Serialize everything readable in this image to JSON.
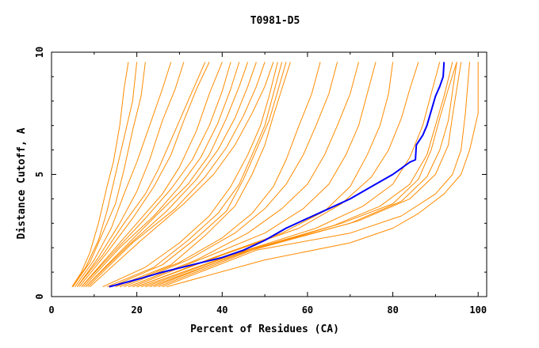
{
  "chart_data": {
    "type": "line",
    "title": "T0981-D5",
    "xlabel": "Percent of Residues (CA)",
    "ylabel": "Distance Cutoff, A",
    "xlim": [
      0,
      102
    ],
    "ylim": [
      0,
      10
    ],
    "xticks": [
      0,
      20,
      40,
      60,
      80,
      100
    ],
    "yticks": [
      0,
      5,
      10
    ],
    "grid": false,
    "colors": {
      "background_curves": "#ff8c00",
      "highlight_curve": "#0000ff",
      "axes": "#000000"
    },
    "series_style": "background curves are orange thin lines, one highlighted model in blue",
    "series": [
      {
        "points": [
          [
            4.8,
            0.4
          ],
          [
            7,
            1.0
          ],
          [
            9,
            1.8
          ],
          [
            11,
            3.0
          ],
          [
            13,
            4.5
          ],
          [
            14.5,
            5.5
          ],
          [
            16,
            7.0
          ],
          [
            17,
            8.5
          ],
          [
            18,
            9.6
          ]
        ]
      },
      {
        "points": [
          [
            5,
            0.4
          ],
          [
            8,
            1.2
          ],
          [
            11,
            2.3
          ],
          [
            13,
            3.5
          ],
          [
            15,
            5.0
          ],
          [
            17,
            6.5
          ],
          [
            19,
            8.0
          ],
          [
            20,
            9.6
          ]
        ]
      },
      {
        "points": [
          [
            5,
            0.4
          ],
          [
            9,
            1.4
          ],
          [
            12,
            2.6
          ],
          [
            15,
            3.8
          ],
          [
            17,
            5.2
          ],
          [
            19,
            6.8
          ],
          [
            21,
            8.2
          ],
          [
            22,
            9.6
          ]
        ]
      },
      {
        "points": [
          [
            5.5,
            0.4
          ],
          [
            10,
            1.5
          ],
          [
            14,
            2.8
          ],
          [
            17,
            4.2
          ],
          [
            20,
            5.5
          ],
          [
            23,
            7.0
          ],
          [
            26,
            8.5
          ],
          [
            28,
            9.6
          ]
        ]
      },
      {
        "points": [
          [
            6,
            0.4
          ],
          [
            11,
            1.6
          ],
          [
            16,
            3.0
          ],
          [
            20,
            4.3
          ],
          [
            23,
            5.6
          ],
          [
            26,
            7.2
          ],
          [
            29,
            8.5
          ],
          [
            31,
            9.6
          ]
        ]
      },
      {
        "points": [
          [
            6,
            0.4
          ],
          [
            12,
            1.7
          ],
          [
            17,
            3.0
          ],
          [
            22,
            4.2
          ],
          [
            25,
            5.2
          ],
          [
            29,
            6.8
          ],
          [
            33,
            8.4
          ],
          [
            36,
            9.6
          ]
        ]
      },
      {
        "points": [
          [
            6.5,
            0.4
          ],
          [
            13,
            1.8
          ],
          [
            19,
            3.2
          ],
          [
            24,
            4.5
          ],
          [
            28,
            5.8
          ],
          [
            31,
            7.2
          ],
          [
            34,
            8.5
          ],
          [
            37,
            9.6
          ]
        ]
      },
      {
        "points": [
          [
            7,
            0.4
          ],
          [
            14,
            1.8
          ],
          [
            20,
            3.0
          ],
          [
            26,
            4.2
          ],
          [
            30,
            5.3
          ],
          [
            34,
            6.8
          ],
          [
            37,
            8.3
          ],
          [
            40,
            9.6
          ]
        ]
      },
      {
        "points": [
          [
            7,
            0.4
          ],
          [
            15,
            1.9
          ],
          [
            22,
            3.2
          ],
          [
            28,
            4.4
          ],
          [
            33,
            5.6
          ],
          [
            37,
            7.0
          ],
          [
            40,
            8.4
          ],
          [
            42,
            9.6
          ]
        ]
      },
      {
        "points": [
          [
            7.5,
            0.4
          ],
          [
            16,
            2.0
          ],
          [
            24,
            3.3
          ],
          [
            30,
            4.5
          ],
          [
            35,
            5.7
          ],
          [
            39,
            7.1
          ],
          [
            42,
            8.5
          ],
          [
            44,
            9.6
          ]
        ]
      },
      {
        "points": [
          [
            8,
            0.4
          ],
          [
            17,
            2.0
          ],
          [
            25,
            3.4
          ],
          [
            32,
            4.6
          ],
          [
            37,
            5.8
          ],
          [
            41,
            7.3
          ],
          [
            44,
            8.6
          ],
          [
            46,
            9.6
          ]
        ]
      },
      {
        "points": [
          [
            8,
            0.4
          ],
          [
            18,
            2.1
          ],
          [
            27,
            3.5
          ],
          [
            34,
            4.8
          ],
          [
            39,
            6.0
          ],
          [
            43,
            7.3
          ],
          [
            46,
            8.6
          ],
          [
            48,
            9.6
          ]
        ]
      },
      {
        "points": [
          [
            8.5,
            0.4
          ],
          [
            19,
            2.2
          ],
          [
            29,
            3.6
          ],
          [
            36,
            4.9
          ],
          [
            41,
            6.1
          ],
          [
            45,
            7.4
          ],
          [
            48,
            8.6
          ],
          [
            50,
            9.6
          ]
        ]
      },
      {
        "points": [
          [
            9,
            0.4
          ],
          [
            21,
            2.3
          ],
          [
            31,
            3.8
          ],
          [
            38,
            5.0
          ],
          [
            43,
            6.2
          ],
          [
            47,
            7.5
          ],
          [
            50,
            8.6
          ],
          [
            52,
            9.6
          ]
        ]
      },
      {
        "points": [
          [
            12,
            0.4
          ],
          [
            22,
            1.2
          ],
          [
            30,
            2.2
          ],
          [
            37,
            3.3
          ],
          [
            42,
            4.5
          ],
          [
            46,
            5.8
          ],
          [
            49,
            7.0
          ],
          [
            51,
            8.2
          ],
          [
            53,
            9.6
          ]
        ]
      },
      {
        "points": [
          [
            13,
            0.4
          ],
          [
            24,
            1.2
          ],
          [
            32,
            2.3
          ],
          [
            39,
            3.4
          ],
          [
            44,
            4.6
          ],
          [
            47,
            5.8
          ],
          [
            50,
            7.0
          ],
          [
            52,
            8.3
          ],
          [
            54,
            9.6
          ]
        ]
      },
      {
        "points": [
          [
            14,
            0.4
          ],
          [
            26,
            1.3
          ],
          [
            34,
            2.4
          ],
          [
            41,
            3.5
          ],
          [
            45,
            4.8
          ],
          [
            48,
            6.0
          ],
          [
            51,
            7.2
          ],
          [
            53,
            8.4
          ],
          [
            55,
            9.6
          ]
        ]
      },
      {
        "points": [
          [
            15,
            0.4
          ],
          [
            28,
            1.3
          ],
          [
            36,
            2.5
          ],
          [
            43,
            3.7
          ],
          [
            47,
            5.0
          ],
          [
            50,
            6.2
          ],
          [
            52,
            7.4
          ],
          [
            54,
            8.5
          ],
          [
            56,
            9.6
          ]
        ]
      },
      {
        "points": [
          [
            16,
            0.4
          ],
          [
            30,
            1.4
          ],
          [
            40,
            2.4
          ],
          [
            47,
            3.4
          ],
          [
            52,
            4.5
          ],
          [
            55,
            5.6
          ],
          [
            58,
            7.0
          ],
          [
            61,
            8.3
          ],
          [
            63,
            9.6
          ]
        ]
      },
      {
        "points": [
          [
            17,
            0.4
          ],
          [
            32,
            1.5
          ],
          [
            43,
            2.6
          ],
          [
            50,
            3.6
          ],
          [
            55,
            4.6
          ],
          [
            59,
            5.8
          ],
          [
            62,
            7.0
          ],
          [
            65,
            8.3
          ],
          [
            67,
            9.6
          ]
        ]
      },
      {
        "points": [
          [
            18,
            0.4
          ],
          [
            34,
            1.5
          ],
          [
            46,
            2.6
          ],
          [
            54,
            3.6
          ],
          [
            60,
            4.6
          ],
          [
            64,
            5.8
          ],
          [
            67,
            7.0
          ],
          [
            70,
            8.3
          ],
          [
            72,
            9.6
          ]
        ]
      },
      {
        "points": [
          [
            19,
            0.4
          ],
          [
            36,
            1.6
          ],
          [
            50,
            2.6
          ],
          [
            59,
            3.6
          ],
          [
            65,
            4.6
          ],
          [
            69,
            5.8
          ],
          [
            72,
            7.0
          ],
          [
            74,
            8.3
          ],
          [
            76,
            9.6
          ]
        ]
      },
      {
        "points": [
          [
            20,
            0.4
          ],
          [
            38,
            1.6
          ],
          [
            54,
            2.6
          ],
          [
            64,
            3.5
          ],
          [
            70,
            4.5
          ],
          [
            74,
            5.8
          ],
          [
            77,
            7.0
          ],
          [
            79,
            8.3
          ],
          [
            80,
            9.6
          ]
        ]
      },
      {
        "points": [
          [
            20,
            0.4
          ],
          [
            40,
            1.7
          ],
          [
            58,
            2.8
          ],
          [
            68,
            3.8
          ],
          [
            75,
            4.9
          ],
          [
            79,
            6.0
          ],
          [
            82,
            7.3
          ],
          [
            84,
            8.5
          ],
          [
            86,
            9.6
          ]
        ]
      },
      {
        "points": [
          [
            21,
            0.4
          ],
          [
            42,
            1.7
          ],
          [
            62,
            2.8
          ],
          [
            73,
            3.7
          ],
          [
            80,
            4.6
          ],
          [
            84,
            5.7
          ],
          [
            87,
            7.0
          ],
          [
            89,
            8.3
          ],
          [
            91,
            9.6
          ]
        ]
      },
      {
        "points": [
          [
            22,
            0.4
          ],
          [
            44,
            1.8
          ],
          [
            66,
            2.9
          ],
          [
            77,
            3.7
          ],
          [
            84,
            4.6
          ],
          [
            88,
            5.8
          ],
          [
            90,
            7.0
          ],
          [
            92,
            8.2
          ],
          [
            94,
            9.6
          ]
        ]
      },
      {
        "points": [
          [
            23,
            0.4
          ],
          [
            45,
            1.8
          ],
          [
            68,
            3.0
          ],
          [
            80,
            3.8
          ],
          [
            86,
            4.8
          ],
          [
            89,
            6.0
          ],
          [
            91,
            7.3
          ],
          [
            93,
            8.5
          ],
          [
            95,
            9.6
          ]
        ]
      },
      {
        "points": [
          [
            24,
            0.4
          ],
          [
            46,
            1.9
          ],
          [
            70,
            3.0
          ],
          [
            82,
            3.9
          ],
          [
            88,
            4.9
          ],
          [
            91,
            6.0
          ],
          [
            93,
            7.2
          ],
          [
            94,
            8.4
          ],
          [
            95,
            9.6
          ]
        ]
      },
      {
        "points": [
          [
            25,
            0.4
          ],
          [
            47,
            1.9
          ],
          [
            72,
            3.1
          ],
          [
            84,
            4.0
          ],
          [
            90,
            5.0
          ],
          [
            93,
            6.2
          ],
          [
            94,
            7.4
          ],
          [
            95,
            8.5
          ],
          [
            96,
            9.6
          ]
        ]
      },
      {
        "points": [
          [
            26,
            0.4
          ],
          [
            48,
            1.9
          ],
          [
            70,
            2.6
          ],
          [
            82,
            3.3
          ],
          [
            90,
            4.2
          ],
          [
            94,
            5.0
          ],
          [
            96,
            6.0
          ],
          [
            97,
            7.5
          ],
          [
            98,
            9.6
          ]
        ]
      },
      {
        "points": [
          [
            27,
            0.4
          ],
          [
            50,
            1.5
          ],
          [
            70,
            2.2
          ],
          [
            80,
            2.8
          ],
          [
            86,
            3.4
          ],
          [
            92,
            4.2
          ],
          [
            96,
            5.0
          ],
          [
            98,
            6.0
          ],
          [
            100,
            7.5
          ],
          [
            100,
            9.0
          ],
          [
            100,
            9.6
          ]
        ]
      }
    ],
    "highlight": {
      "points": [
        [
          13.5,
          0.4
        ],
        [
          20,
          0.7
        ],
        [
          26,
          1.0
        ],
        [
          33,
          1.3
        ],
        [
          40,
          1.6
        ],
        [
          45,
          1.9
        ],
        [
          50,
          2.3
        ],
        [
          55,
          2.8
        ],
        [
          60,
          3.2
        ],
        [
          65,
          3.6
        ],
        [
          70,
          4.0
        ],
        [
          75,
          4.5
        ],
        [
          80,
          5.0
        ],
        [
          84,
          5.5
        ],
        [
          85.3,
          5.6
        ],
        [
          85.5,
          6.2
        ],
        [
          87,
          6.6
        ],
        [
          88,
          7.0
        ],
        [
          89,
          7.6
        ],
        [
          90,
          8.2
        ],
        [
          91,
          8.6
        ],
        [
          91.8,
          9.0
        ],
        [
          92,
          9.6
        ]
      ]
    }
  }
}
